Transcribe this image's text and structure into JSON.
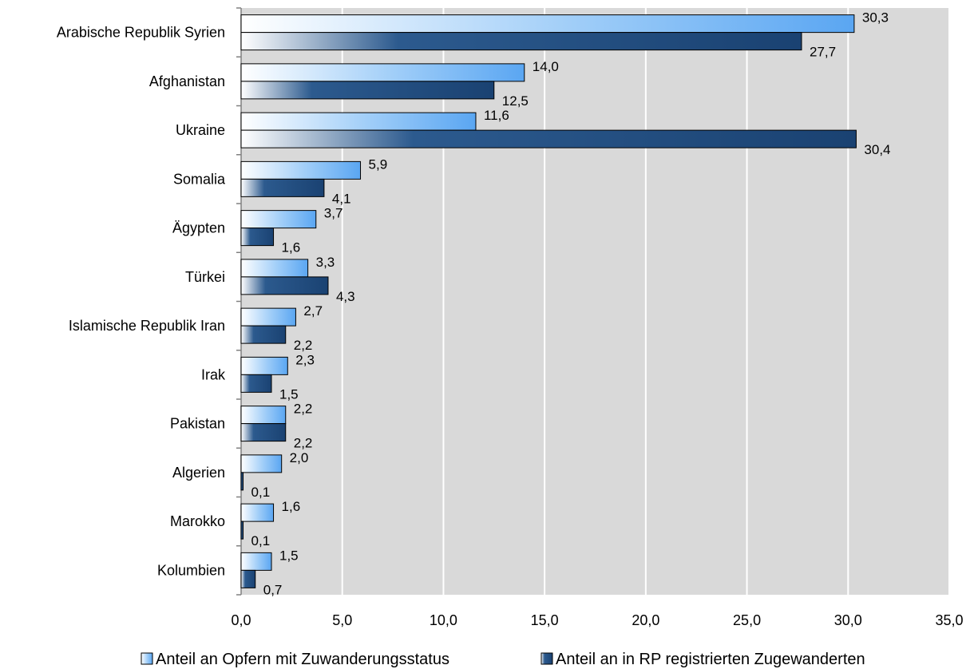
{
  "chart_data": {
    "type": "bar",
    "orientation": "horizontal",
    "categories": [
      "Arabische Republik Syrien",
      "Afghanistan",
      "Ukraine",
      "Somalia",
      "Ägypten",
      "Türkei",
      "Islamische Republik Iran",
      "Irak",
      "Pakistan",
      "Algerien",
      "Marokko",
      "Kolumbien"
    ],
    "series": [
      {
        "name": "Anteil an Opfern mit Zuwanderungsstatus",
        "values": [
          30.3,
          14.0,
          11.6,
          5.9,
          3.7,
          3.3,
          2.7,
          2.3,
          2.2,
          2.0,
          1.6,
          1.5
        ],
        "labels": [
          "30,3",
          "14,0",
          "11,6",
          "5,9",
          "3,7",
          "3,3",
          "2,7",
          "2,3",
          "2,2",
          "2,0",
          "1,6",
          "1,5"
        ],
        "color": "#6fb3f5"
      },
      {
        "name": "Anteil an in RP registrierten Zugewanderten",
        "values": [
          27.7,
          12.5,
          30.4,
          4.1,
          1.6,
          4.3,
          2.2,
          1.5,
          2.2,
          0.1,
          0.1,
          0.7
        ],
        "labels": [
          "27,7",
          "12,5",
          "30,4",
          "4,1",
          "1,6",
          "4,3",
          "2,2",
          "1,5",
          "2,2",
          "0,1",
          "0,1",
          "0,7"
        ],
        "color": "#1f4b7e"
      }
    ],
    "xlim": [
      0,
      35
    ],
    "xticks": [
      0,
      5,
      10,
      15,
      20,
      25,
      30,
      35
    ],
    "xtick_labels": [
      "0,0",
      "5,0",
      "10,0",
      "15,0",
      "20,0",
      "25,0",
      "30,0",
      "35,0"
    ],
    "grid": "vertical",
    "plot_background": "#d9d9d9",
    "legend_position": "bottom"
  }
}
